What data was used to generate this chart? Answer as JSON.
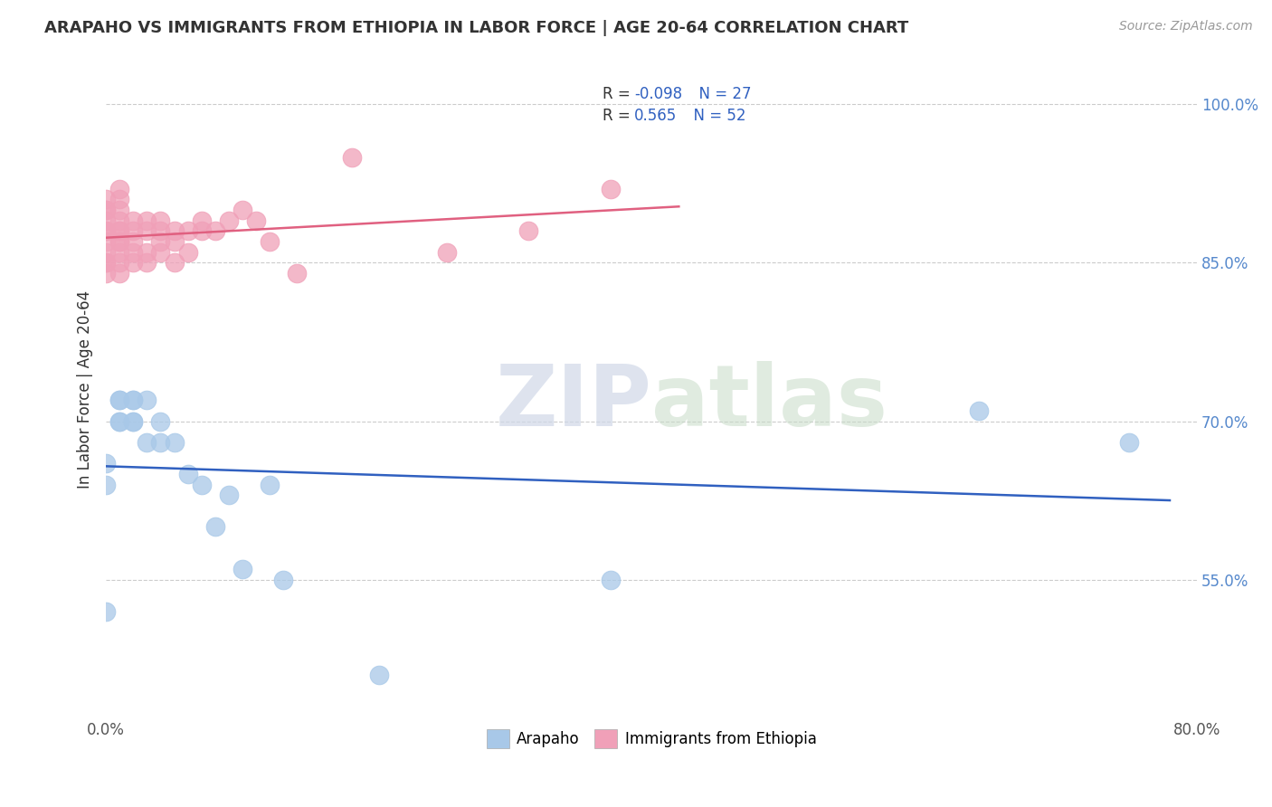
{
  "title": "ARAPAHO VS IMMIGRANTS FROM ETHIOPIA IN LABOR FORCE | AGE 20-64 CORRELATION CHART",
  "source": "Source: ZipAtlas.com",
  "ylabel": "In Labor Force | Age 20-64",
  "xlim": [
    0.0,
    0.8
  ],
  "ylim": [
    0.42,
    1.04
  ],
  "xticks": [
    0.0,
    0.2,
    0.4,
    0.6,
    0.8
  ],
  "xticklabels": [
    "0.0%",
    "",
    "",
    "",
    "80.0%"
  ],
  "yticks": [
    0.55,
    0.7,
    0.85,
    1.0
  ],
  "yticklabels": [
    "55.0%",
    "70.0%",
    "85.0%",
    "100.0%"
  ],
  "arapaho_color": "#a8c8e8",
  "ethiopia_color": "#f0a0b8",
  "arapaho_line_color": "#3060c0",
  "ethiopia_line_color": "#e06080",
  "arapaho_r": -0.098,
  "arapaho_n": 27,
  "ethiopia_r": 0.565,
  "ethiopia_n": 52,
  "arapaho_points_x": [
    0.0,
    0.0,
    0.0,
    0.01,
    0.01,
    0.01,
    0.01,
    0.02,
    0.02,
    0.02,
    0.02,
    0.03,
    0.03,
    0.04,
    0.04,
    0.05,
    0.06,
    0.07,
    0.08,
    0.09,
    0.1,
    0.12,
    0.13,
    0.2,
    0.37,
    0.64,
    0.75
  ],
  "arapaho_points_y": [
    0.64,
    0.66,
    0.52,
    0.72,
    0.7,
    0.7,
    0.72,
    0.72,
    0.7,
    0.7,
    0.72,
    0.72,
    0.68,
    0.7,
    0.68,
    0.68,
    0.65,
    0.64,
    0.6,
    0.63,
    0.56,
    0.64,
    0.55,
    0.46,
    0.55,
    0.71,
    0.68
  ],
  "ethiopia_points_x": [
    0.0,
    0.0,
    0.0,
    0.0,
    0.0,
    0.0,
    0.0,
    0.0,
    0.0,
    0.0,
    0.0,
    0.01,
    0.01,
    0.01,
    0.01,
    0.01,
    0.01,
    0.01,
    0.01,
    0.01,
    0.01,
    0.01,
    0.02,
    0.02,
    0.02,
    0.02,
    0.02,
    0.03,
    0.03,
    0.03,
    0.03,
    0.04,
    0.04,
    0.04,
    0.04,
    0.05,
    0.05,
    0.05,
    0.06,
    0.06,
    0.07,
    0.07,
    0.08,
    0.09,
    0.1,
    0.11,
    0.12,
    0.14,
    0.18,
    0.25,
    0.31,
    0.37
  ],
  "ethiopia_points_y": [
    0.84,
    0.85,
    0.85,
    0.86,
    0.87,
    0.88,
    0.88,
    0.89,
    0.9,
    0.9,
    0.91,
    0.84,
    0.85,
    0.86,
    0.87,
    0.87,
    0.88,
    0.88,
    0.89,
    0.9,
    0.91,
    0.92,
    0.85,
    0.86,
    0.87,
    0.88,
    0.89,
    0.85,
    0.86,
    0.88,
    0.89,
    0.86,
    0.87,
    0.88,
    0.89,
    0.85,
    0.87,
    0.88,
    0.86,
    0.88,
    0.88,
    0.89,
    0.88,
    0.89,
    0.9,
    0.89,
    0.87,
    0.84,
    0.95,
    0.86,
    0.88,
    0.92
  ],
  "watermark_zip": "ZIP",
  "watermark_atlas": "atlas",
  "grid_color": "#cccccc",
  "tick_color": "#5588cc"
}
